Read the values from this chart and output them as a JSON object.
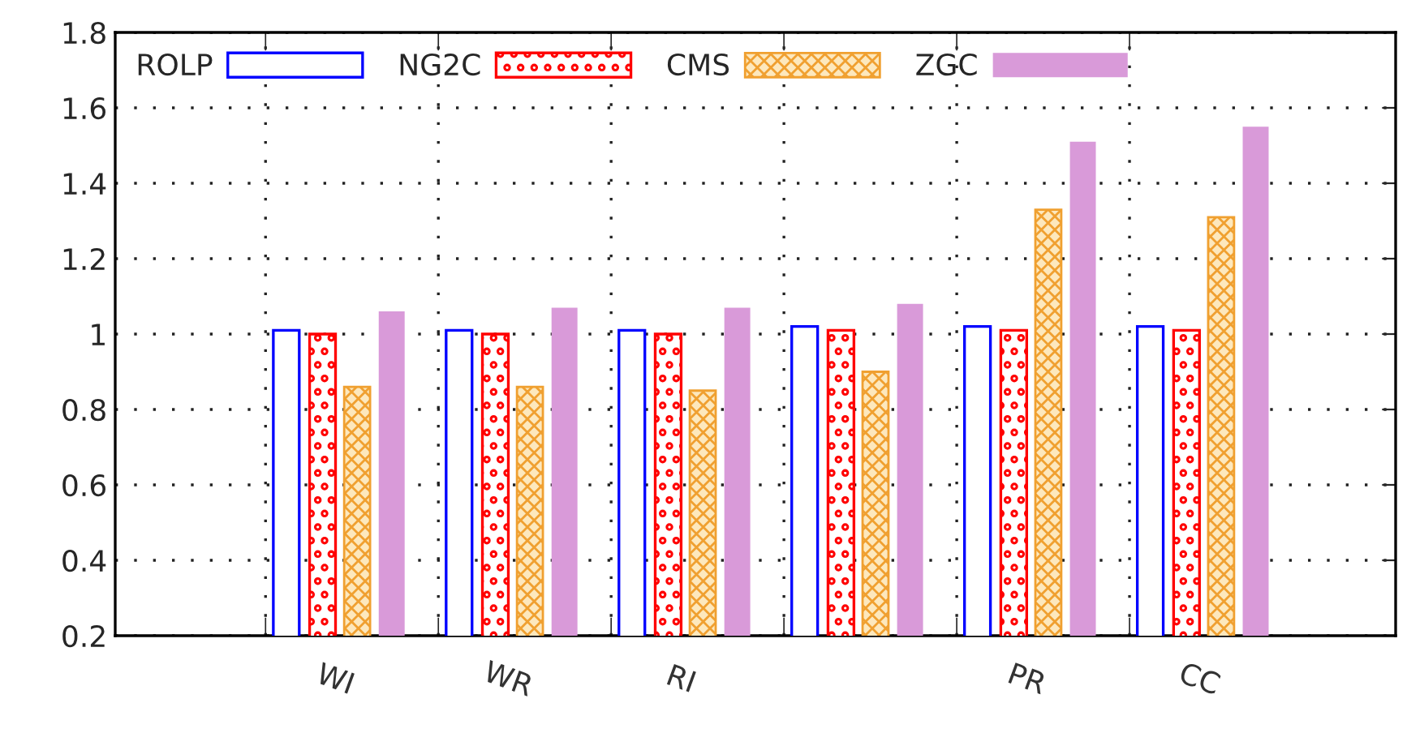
{
  "chart_data": {
    "type": "bar",
    "categories": [
      "WI",
      "WR",
      "RI",
      null,
      "PR",
      "CC"
    ],
    "series": [
      {
        "name": "ROLP",
        "color": "#0000ff",
        "values": [
          1.01,
          1.01,
          1.01,
          1.02,
          1.02,
          1.02
        ]
      },
      {
        "name": "NG2C",
        "color": "#ff0000",
        "values": [
          1.0,
          1.0,
          1.0,
          1.01,
          1.01,
          1.01
        ]
      },
      {
        "name": "CMS",
        "color": "#f0a030",
        "values": [
          0.86,
          0.86,
          0.85,
          0.9,
          1.33,
          1.31
        ]
      },
      {
        "name": "ZGC",
        "color": "#d99ad9",
        "values": [
          1.06,
          1.07,
          1.07,
          1.08,
          1.51,
          1.55
        ]
      }
    ],
    "ylim": [
      0.2,
      1.8
    ],
    "yticks": [
      0.2,
      0.4,
      0.6,
      0.8,
      1,
      1.2,
      1.4,
      1.6,
      1.8
    ],
    "grid": true,
    "legend": "top left"
  }
}
